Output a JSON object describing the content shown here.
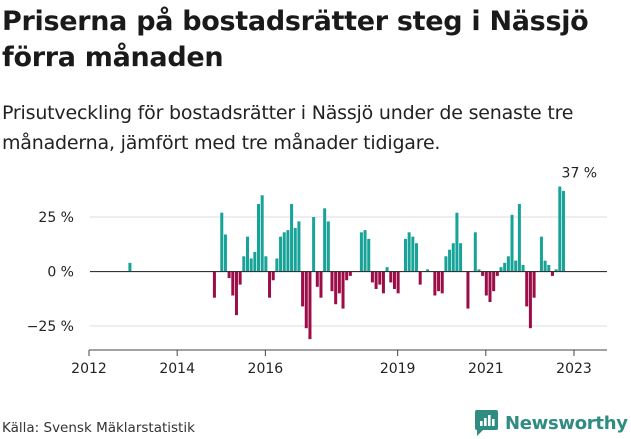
{
  "title": "Priserna på bostadsrätter steg i Nässjö förra månaden",
  "subtitle": "Prisutveckling för bostadsrätter i Nässjö under de senaste tre månaderna, jämfört med tre månader tidigare.",
  "source": "Källa: Svensk Mäklarstatistik",
  "brand": {
    "name": "Newsworthy",
    "icon": "newsworthy-logo-icon",
    "color": "#2f8c81"
  },
  "colors": {
    "positive": "#17a398",
    "negative": "#9c0d48",
    "grid": "#dddddd",
    "zero": "#333333"
  },
  "chart_data": {
    "type": "bar",
    "x_unit": "month",
    "ylim": [
      -36,
      42
    ],
    "ylabel": "",
    "xlabel": "",
    "x_ticks": [
      "2012",
      "2014",
      "2016",
      "2019",
      "2021",
      "2023"
    ],
    "y_ticks": [
      {
        "value": 25,
        "label": "25 %"
      },
      {
        "value": 0,
        "label": "0 %"
      },
      {
        "value": -25,
        "label": "−25 %"
      }
    ],
    "annotation": {
      "x": "2023-03",
      "y": 39,
      "label": "37 %"
    },
    "values": [
      {
        "x": "2012-12",
        "y": 4
      },
      {
        "x": "2014-11",
        "y": -12
      },
      {
        "x": "2015-01",
        "y": 27
      },
      {
        "x": "2015-02",
        "y": 17
      },
      {
        "x": "2015-03",
        "y": -3
      },
      {
        "x": "2015-04",
        "y": -11
      },
      {
        "x": "2015-05",
        "y": -20
      },
      {
        "x": "2015-06",
        "y": -6
      },
      {
        "x": "2015-07",
        "y": 7
      },
      {
        "x": "2015-08",
        "y": 16
      },
      {
        "x": "2015-09",
        "y": 6
      },
      {
        "x": "2015-10",
        "y": 9
      },
      {
        "x": "2015-11",
        "y": 31
      },
      {
        "x": "2015-12",
        "y": 35
      },
      {
        "x": "2016-01",
        "y": 7
      },
      {
        "x": "2016-02",
        "y": -12
      },
      {
        "x": "2016-03",
        "y": -4
      },
      {
        "x": "2016-04",
        "y": 6
      },
      {
        "x": "2016-05",
        "y": 16
      },
      {
        "x": "2016-06",
        "y": 18
      },
      {
        "x": "2016-07",
        "y": 19
      },
      {
        "x": "2016-08",
        "y": 31
      },
      {
        "x": "2016-09",
        "y": 20
      },
      {
        "x": "2016-10",
        "y": 23
      },
      {
        "x": "2016-11",
        "y": -16
      },
      {
        "x": "2016-12",
        "y": -26
      },
      {
        "x": "2017-01",
        "y": -31
      },
      {
        "x": "2017-02",
        "y": 25
      },
      {
        "x": "2017-03",
        "y": -7
      },
      {
        "x": "2017-04",
        "y": -12
      },
      {
        "x": "2017-05",
        "y": 29
      },
      {
        "x": "2017-06",
        "y": 23
      },
      {
        "x": "2017-07",
        "y": -9
      },
      {
        "x": "2017-08",
        "y": -15
      },
      {
        "x": "2017-09",
        "y": -10
      },
      {
        "x": "2017-10",
        "y": -17
      },
      {
        "x": "2017-11",
        "y": -4
      },
      {
        "x": "2017-12",
        "y": -2
      },
      {
        "x": "2018-03",
        "y": 18
      },
      {
        "x": "2018-04",
        "y": 19
      },
      {
        "x": "2018-05",
        "y": 15
      },
      {
        "x": "2018-06",
        "y": -5
      },
      {
        "x": "2018-07",
        "y": -8
      },
      {
        "x": "2018-08",
        "y": -6
      },
      {
        "x": "2018-09",
        "y": -10
      },
      {
        "x": "2018-10",
        "y": 2
      },
      {
        "x": "2018-11",
        "y": -5
      },
      {
        "x": "2018-12",
        "y": -8
      },
      {
        "x": "2019-01",
        "y": -10
      },
      {
        "x": "2019-03",
        "y": 15
      },
      {
        "x": "2019-04",
        "y": 18
      },
      {
        "x": "2019-05",
        "y": 16
      },
      {
        "x": "2019-06",
        "y": 13
      },
      {
        "x": "2019-07",
        "y": -6
      },
      {
        "x": "2019-09",
        "y": 1
      },
      {
        "x": "2019-11",
        "y": -11
      },
      {
        "x": "2019-12",
        "y": -9
      },
      {
        "x": "2020-01",
        "y": -10
      },
      {
        "x": "2020-02",
        "y": 7
      },
      {
        "x": "2020-03",
        "y": 10
      },
      {
        "x": "2020-04",
        "y": 13
      },
      {
        "x": "2020-05",
        "y": 27
      },
      {
        "x": "2020-06",
        "y": 13
      },
      {
        "x": "2020-08",
        "y": -17
      },
      {
        "x": "2020-10",
        "y": 18
      },
      {
        "x": "2020-11",
        "y": 1
      },
      {
        "x": "2020-12",
        "y": -2
      },
      {
        "x": "2021-01",
        "y": -11
      },
      {
        "x": "2021-02",
        "y": -14
      },
      {
        "x": "2021-03",
        "y": -9
      },
      {
        "x": "2021-04",
        "y": -2
      },
      {
        "x": "2021-05",
        "y": 2
      },
      {
        "x": "2021-06",
        "y": 4
      },
      {
        "x": "2021-07",
        "y": 7
      },
      {
        "x": "2021-08",
        "y": 26
      },
      {
        "x": "2021-09",
        "y": 5
      },
      {
        "x": "2021-10",
        "y": 31
      },
      {
        "x": "2021-11",
        "y": 3
      },
      {
        "x": "2021-12",
        "y": -16
      },
      {
        "x": "2022-01",
        "y": -26
      },
      {
        "x": "2022-02",
        "y": -12
      },
      {
        "x": "2022-04",
        "y": 16
      },
      {
        "x": "2022-05",
        "y": 5
      },
      {
        "x": "2022-06",
        "y": 3
      },
      {
        "x": "2022-07",
        "y": -2
      },
      {
        "x": "2022-08",
        "y": 1
      },
      {
        "x": "2022-09",
        "y": 39
      },
      {
        "x": "2022-10",
        "y": 37
      }
    ]
  }
}
